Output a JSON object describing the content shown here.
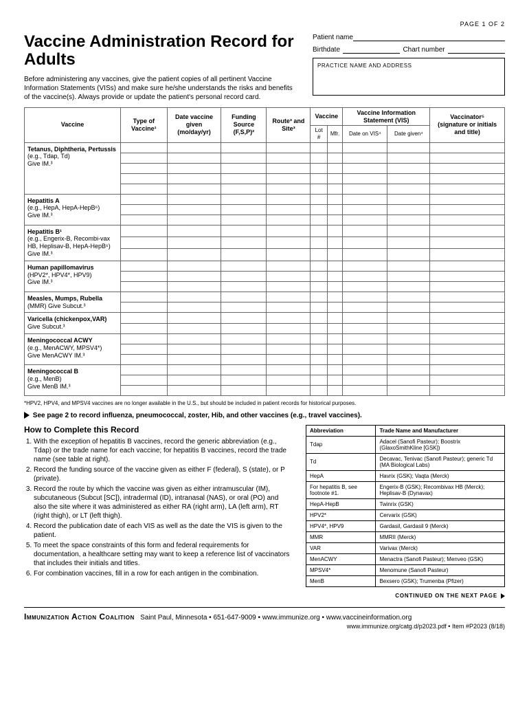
{
  "page_label": "PAGE 1 OF 2",
  "title": "Vaccine Administration Record for Adults",
  "intro": "Before administering any vaccines, give the patient copies of all pertinent Vaccine Information Statements (VISs) and make sure he/she understands the risks and benefits of the vaccine(s). Always provide or update the patient's personal record card.",
  "fields": {
    "patient_name": "Patient name",
    "birthdate": "Birthdate",
    "chart_number": "Chart number",
    "practice": "PRACTICE NAME AND ADDRESS"
  },
  "vac_table": {
    "headers": {
      "vaccine": "Vaccine",
      "type": "Type of Vaccine¹",
      "date": "Date vaccine given",
      "date_sub": "(mo/day/yr)",
      "funding": "Funding Source",
      "funding_sub": "(F,S,P)²",
      "route": "Route³ and Site³",
      "vaccine2": "Vaccine",
      "lot": "Lot #",
      "mfr": "Mfr.",
      "vis": "Vaccine Information Statement (VIS)",
      "vis_date": "Date on VIS⁴",
      "vis_given": "Date given⁴",
      "vaccinator": "Vaccinator⁵",
      "vaccinator_sub": "(signature or initials and title)"
    },
    "rows": [
      {
        "name": "Tetanus, Diphtheria, Pertussis",
        "eg": "(e.g., Tdap, Td)",
        "give": "Give IM.³",
        "n": 5
      },
      {
        "name": "Hepatitis A",
        "eg": "(e.g., HepA, HepA-HepB⁶)",
        "give": "Give IM.³",
        "n": 3
      },
      {
        "name": "Hepatitis B¹",
        "eg": "(e.g., Engerix-B, Recombi-vax HB, Heplisav-B, HepA-HepB⁶)",
        "give": "Give IM.³",
        "n": 3
      },
      {
        "name": "Human papillomavirus",
        "eg": "(HPV2*, HPV4*, HPV9)",
        "give": "Give IM.³",
        "n": 3
      },
      {
        "name": "Measles, Mumps, Rubella",
        "eg": "(MMR) Give Subcut.³",
        "give": "",
        "n": 2
      },
      {
        "name": "Varicella (chickenpox,VAR)",
        "eg": "Give Subcut.³",
        "give": "",
        "n": 2
      },
      {
        "name": "Meningococcal ACWY",
        "eg": "(e.g., MenACWY, MPSV4*)",
        "give": "Give MenACWY IM.³",
        "n": 3
      },
      {
        "name": "Meningococcal B",
        "eg": "(e.g., MenB)",
        "give": "Give MenB IM.³",
        "n": 3
      }
    ]
  },
  "footnote": "*HPV2, HPV4, and MPSV4 vaccines are no longer available in the U.S., but should be included in patient records for historical purposes.",
  "see_page": "See page 2 to record influenza, pneumococcal, zoster, Hib, and other vaccines (e.g., travel vaccines).",
  "howto_title": "How to Complete this Record",
  "howto": [
    "With the exception of hepatitis B vaccines, record the generic abbreviation (e.g., Tdap) or the trade name for each vaccine; for hepatitis B vaccines, record the trade name (see table at right).",
    "Record the funding source of the vaccine given as either F (federal), S (state), or P (private).",
    "Record the route by which the vaccine was given as either intramuscular (IM), subcutaneous (Subcut [SC]), intradermal (ID), intranasal (NAS), or oral (PO) and also the site where it was administered as either RA (right arm), LA (left arm), RT (right thigh), or LT (left thigh).",
    "Record the publication date of each VIS as well as the date the VIS is given to the patient.",
    "To meet the space constraints of this form and federal requirements for documentation, a healthcare setting may want to keep a reference list of vaccinators that includes their initials and titles.",
    "For combination vaccines, fill in a row for each antigen in the combination."
  ],
  "abbr_table": {
    "h1": "Abbreviation",
    "h2": "Trade Name and Manufacturer",
    "rows": [
      [
        "Tdap",
        "Adacel (Sanofi Pasteur); Boostrix (GlaxoSmithKline [GSK])"
      ],
      [
        "Td",
        "Decavac, Tenivac (Sanofi Pasteur); generic Td (MA Biological Labs)"
      ],
      [
        "HepA",
        "Havrix (GSK); Vaqta (Merck)"
      ],
      [
        "For hepatitis B, see footnote #1.",
        "Engerix-B (GSK); Recombivax HB (Merck); Heplisav-B (Dynavax)"
      ],
      [
        "HepA-HepB",
        "Twinrix (GSK)"
      ],
      [
        "HPV2*",
        "Cervarix (GSK)"
      ],
      [
        "HPV4*, HPV9",
        "Gardasil, Gardasil 9 (Merck)"
      ],
      [
        "MMR",
        "MMRII (Merck)"
      ],
      [
        "VAR",
        "Varivax (Merck)"
      ],
      [
        "MenACWY",
        "Menactra (Sanofi Pasteur); Menveo (GSK)"
      ],
      [
        "MPSV4*",
        "Menomune (Sanofi Pasteur)"
      ],
      [
        "MenB",
        "Bexsero (GSK); Trumenba (Pfizer)"
      ]
    ]
  },
  "continued": "CONTINUED ON THE NEXT PAGE",
  "footer": {
    "org": "Immunization Action Coalition",
    "rest": "Saint Paul, Minnesota • 651-647-9009 • www.immunize.org • www.vaccineinformation.org",
    "line2": "www.immunize.org/catg.d/p2023.pdf • Item #P2023 (8/18)"
  }
}
